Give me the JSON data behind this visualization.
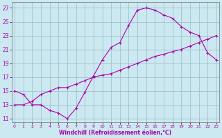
{
  "xlabel": "Windchill (Refroidissement éolien,°C)",
  "bg_color": "#cce8f0",
  "grid_color": "#99bbcc",
  "line_color": "#aa00aa",
  "line1_x": [
    0,
    1,
    2,
    3,
    4,
    5,
    6,
    7,
    8,
    9,
    10,
    11,
    12,
    13,
    14,
    15,
    16,
    17,
    18,
    19,
    20,
    21,
    22,
    23
  ],
  "line1_y": [
    15.0,
    14.5,
    13.0,
    13.0,
    12.2,
    11.8,
    11.0,
    12.5,
    14.8,
    17.2,
    19.5,
    21.3,
    22.0,
    24.5,
    26.7,
    27.0,
    26.7,
    26.0,
    25.5,
    24.3,
    23.5,
    23.0,
    20.5,
    19.5
  ],
  "line2_x": [
    0,
    1,
    2,
    3,
    4,
    5,
    6,
    7,
    8,
    9,
    10,
    11,
    12,
    13,
    14,
    15,
    16,
    17,
    18,
    19,
    20,
    21,
    22,
    23
  ],
  "line2_y": [
    13.0,
    13.0,
    13.5,
    14.5,
    15.0,
    15.5,
    15.5,
    16.0,
    16.5,
    17.0,
    17.3,
    17.5,
    18.0,
    18.5,
    19.0,
    19.5,
    20.0,
    20.3,
    20.7,
    21.0,
    21.5,
    22.0,
    22.5,
    23.0
  ],
  "yticks": [
    11,
    13,
    15,
    17,
    19,
    21,
    23,
    25,
    27
  ],
  "xticks": [
    0,
    1,
    2,
    3,
    4,
    5,
    6,
    7,
    8,
    9,
    10,
    11,
    12,
    13,
    14,
    15,
    16,
    17,
    18,
    19,
    20,
    21,
    22,
    23
  ],
  "xlim": [
    -0.3,
    23.3
  ],
  "ylim": [
    10.5,
    27.8
  ]
}
